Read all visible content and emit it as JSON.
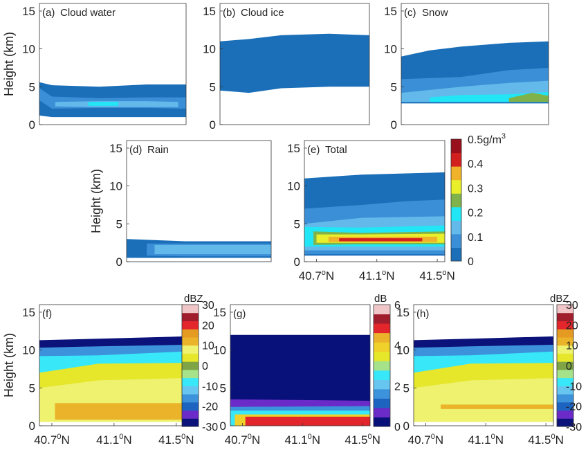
{
  "colors": {
    "water_scale": [
      "#1a6fb8",
      "#3b8fd6",
      "#62b9ea",
      "#21e6f6",
      "#7fb24a",
      "#e9ef2a",
      "#f0b22a",
      "#d2201e",
      "#9a0f1c"
    ],
    "dbz_scale": [
      "#0b137a",
      "#6a2bc8",
      "#1d63c0",
      "#3d92dc",
      "#66c6f0",
      "#38e8f8",
      "#a6e28a",
      "#7ea445",
      "#e6e62a",
      "#eef26e",
      "#eab32a",
      "#e59a21",
      "#e3262b",
      "#a01d2d",
      "#f1c6c8"
    ],
    "db_scale": [
      "#08107a",
      "#6a2bc8",
      "#1d63c0",
      "#3d92dc",
      "#66c6f0",
      "#38e8f8",
      "#a6e28a",
      "#e6e62a",
      "#f0d02a",
      "#eab32a",
      "#e3262b",
      "#a01d2d",
      "#f1c6c8"
    ]
  },
  "chart_data": [
    {
      "type": "heatmap",
      "panel": "a",
      "label": "(a)",
      "title": "Cloud water",
      "ylabel": "Height (km)",
      "ylim": [
        0,
        16
      ],
      "y_ticks": [
        "0",
        "5",
        "10",
        "15"
      ],
      "layers": [
        {
          "name": "0-0.05",
          "band": [
            [
              40.62,
              1.2,
              5.6
            ],
            [
              40.7,
              1.0,
              5.2
            ],
            [
              41.0,
              1.0,
              5.0
            ],
            [
              41.3,
              1.0,
              5.3
            ],
            [
              41.55,
              1.0,
              5.3
            ]
          ]
        },
        {
          "name": "0.05-0.1",
          "band": [
            [
              40.62,
              3.2,
              4.8
            ],
            [
              40.7,
              2.1,
              3.7
            ],
            [
              41.0,
              2.2,
              3.5
            ],
            [
              41.3,
              2.2,
              3.6
            ],
            [
              41.55,
              2.1,
              3.6
            ]
          ]
        },
        {
          "name": "0.15-0.2",
          "band": [
            [
              40.72,
              2.4,
              3.0
            ],
            [
              41.0,
              2.3,
              3.1
            ],
            [
              41.3,
              2.3,
              3.1
            ],
            [
              41.5,
              2.3,
              3.0
            ]
          ]
        },
        {
          "name": "0.25-0.3",
          "band": [
            [
              40.93,
              2.5,
              3.0
            ],
            [
              41.12,
              2.5,
              3.0
            ]
          ]
        }
      ]
    },
    {
      "type": "heatmap",
      "panel": "b",
      "label": "(b)",
      "title": "Cloud ice",
      "ylim": [
        0,
        16
      ],
      "y_ticks": [
        "0",
        "5",
        "10",
        "15"
      ],
      "layers": [
        {
          "name": "0-0.05",
          "band": [
            [
              40.62,
              4.5,
              11.0
            ],
            [
              40.8,
              4.2,
              11.3
            ],
            [
              41.0,
              4.8,
              11.8
            ],
            [
              41.3,
              5.0,
              12.0
            ],
            [
              41.55,
              5.0,
              11.8
            ]
          ]
        }
      ]
    },
    {
      "type": "heatmap",
      "panel": "c",
      "label": "(c)",
      "title": "Snow",
      "ylim": [
        0,
        16
      ],
      "y_ticks": [
        "0",
        "5",
        "10",
        "15"
      ],
      "layers": [
        {
          "name": "0-0.05",
          "band": [
            [
              40.62,
              2.8,
              9.0
            ],
            [
              40.8,
              2.8,
              9.8
            ],
            [
              41.0,
              2.8,
              10.3
            ],
            [
              41.3,
              2.8,
              10.8
            ],
            [
              41.55,
              2.8,
              11.0
            ]
          ]
        },
        {
          "name": "0.05-0.1",
          "band": [
            [
              40.62,
              3.0,
              6.0
            ],
            [
              41.0,
              3.0,
              6.3
            ],
            [
              41.3,
              3.0,
              7.2
            ],
            [
              41.55,
              3.0,
              7.5
            ]
          ]
        },
        {
          "name": "0.1-0.15",
          "band": [
            [
              40.62,
              3.0,
              4.2
            ],
            [
              41.0,
              3.0,
              5.0
            ],
            [
              41.3,
              3.0,
              5.5
            ],
            [
              41.55,
              3.0,
              5.8
            ]
          ]
        },
        {
          "name": "0.15-0.2",
          "band": [
            [
              40.8,
              3.0,
              3.6
            ],
            [
              41.0,
              3.0,
              3.9
            ],
            [
              41.3,
              3.0,
              4.0
            ],
            [
              41.55,
              3.0,
              4.3
            ]
          ]
        },
        {
          "name": "0.2-0.25",
          "band": [
            [
              41.3,
              3.0,
              3.5
            ],
            [
              41.45,
              3.0,
              4.2
            ],
            [
              41.55,
              3.0,
              3.8
            ]
          ]
        }
      ]
    },
    {
      "type": "heatmap",
      "panel": "d",
      "label": "(d)",
      "title": "Rain",
      "ylabel": "Height (km)",
      "ylim": [
        0,
        16
      ],
      "y_ticks": [
        "0",
        "5",
        "10",
        "15"
      ],
      "layers": [
        {
          "name": "0-0.05",
          "band": [
            [
              40.62,
              0.5,
              3.0
            ],
            [
              41.0,
              0.5,
              2.7
            ],
            [
              41.55,
              0.5,
              2.7
            ]
          ]
        },
        {
          "name": "0.05-0.1",
          "band": [
            [
              40.75,
              0.8,
              2.4
            ],
            [
              41.0,
              0.7,
              2.4
            ],
            [
              41.55,
              0.7,
              2.4
            ]
          ]
        },
        {
          "name": "0.1-0.15",
          "band": [
            [
              40.8,
              1.0,
              2.2
            ],
            [
              41.2,
              1.0,
              2.2
            ],
            [
              41.55,
              1.0,
              2.2
            ]
          ]
        }
      ]
    },
    {
      "type": "heatmap",
      "panel": "e",
      "label": "(e)",
      "title": "Total",
      "ylim": [
        0,
        16
      ],
      "y_ticks": [
        "0",
        "5",
        "10",
        "15"
      ],
      "x_ticks": [
        "40.7",
        "41.1",
        "41.5"
      ],
      "x_tick_unit_sup": "o",
      "x_tick_unit": "N",
      "layers": [
        {
          "name": "0-0.05",
          "band": [
            [
              40.62,
              0.8,
              11.0
            ],
            [
              41.0,
              0.8,
              11.5
            ],
            [
              41.55,
              0.8,
              11.8
            ]
          ]
        },
        {
          "name": "0.05-0.1",
          "band": [
            [
              40.62,
              1.0,
              7.0
            ],
            [
              41.0,
              1.0,
              7.5
            ],
            [
              41.3,
              1.0,
              8.0
            ],
            [
              41.55,
              1.0,
              8.2
            ]
          ]
        },
        {
          "name": "0.1-0.15",
          "band": [
            [
              40.62,
              1.5,
              5.0
            ],
            [
              41.0,
              1.5,
              5.8
            ],
            [
              41.55,
              1.5,
              6.0
            ]
          ]
        },
        {
          "name": "0.15-0.2",
          "band": [
            [
              40.62,
              2.0,
              4.6
            ],
            [
              41.0,
              2.0,
              4.5
            ],
            [
              41.55,
              2.0,
              4.8
            ]
          ]
        },
        {
          "name": "0.2-0.25",
          "band": [
            [
              40.68,
              2.2,
              4.0
            ],
            [
              41.0,
              2.3,
              3.8
            ],
            [
              41.55,
              2.3,
              4.0
            ]
          ]
        },
        {
          "name": "0.25-0.3",
          "band": [
            [
              40.7,
              2.5,
              3.6
            ],
            [
              41.0,
              2.5,
              3.6
            ],
            [
              41.55,
              2.5,
              3.7
            ]
          ]
        },
        {
          "name": "0.3-0.35",
          "band": [
            [
              40.78,
              2.6,
              3.3
            ],
            [
              41.0,
              2.6,
              3.3
            ],
            [
              41.5,
              2.6,
              3.3
            ]
          ]
        },
        {
          "name": "0.35-0.4",
          "band": [
            [
              40.85,
              2.7,
              3.1
            ],
            [
              41.4,
              2.7,
              3.1
            ]
          ]
        }
      ],
      "colorbar": {
        "ticks": [
          "0",
          "0.1",
          "0.2",
          "0.3",
          "0.4",
          "0.5"
        ],
        "unit": "g/m",
        "unit_sup": "3"
      }
    },
    {
      "type": "heatmap",
      "panel": "f",
      "label": "(f)",
      "ylabel": "Height (km)",
      "ylim": [
        0,
        16
      ],
      "y_ticks": [
        "0",
        "5",
        "10",
        "15"
      ],
      "x_ticks": [
        "40.7",
        "41.1",
        "41.5"
      ],
      "x_tick_unit_sup": "0",
      "x_tick_unit": "N",
      "layers": [
        {
          "name": "< -20",
          "band": [
            [
              40.62,
              0.5,
              11.3
            ],
            [
              41.0,
              0.5,
              11.5
            ],
            [
              41.55,
              0.5,
              11.8
            ]
          ]
        },
        {
          "name": "-20 to -10",
          "band": [
            [
              40.62,
              0.5,
              10.3
            ],
            [
              41.0,
              0.5,
              10.5
            ],
            [
              41.55,
              0.5,
              10.7
            ]
          ]
        },
        {
          "name": "-10 to 0",
          "band": [
            [
              40.62,
              0.5,
              9.2
            ],
            [
              41.0,
              0.5,
              9.3
            ],
            [
              41.55,
              0.5,
              9.8
            ]
          ]
        },
        {
          "name": "0 to 10",
          "band": [
            [
              40.62,
              0.5,
              7.0
            ],
            [
              41.0,
              0.5,
              8.2
            ],
            [
              41.55,
              0.5,
              8.3
            ]
          ]
        },
        {
          "name": "10 to 20",
          "band": [
            [
              40.62,
              0.5,
              5.0
            ],
            [
              41.0,
              0.5,
              6.0
            ],
            [
              41.55,
              0.5,
              6.3
            ]
          ]
        },
        {
          "name": "20 to 30",
          "band": [
            [
              40.72,
              0.8,
              3.0
            ],
            [
              41.0,
              0.8,
              3.0
            ],
            [
              41.55,
              0.8,
              3.0
            ]
          ]
        }
      ],
      "colorbar": {
        "title": "dBZ",
        "ticks": [
          "-30",
          "-20",
          "-10",
          "0",
          "10",
          "20",
          "30"
        ]
      }
    },
    {
      "type": "heatmap",
      "panel": "g",
      "label": "(g)",
      "ylim": [
        0,
        16
      ],
      "y_ticks": [
        "0",
        "5",
        "10",
        "15"
      ],
      "x_ticks": [
        "40.7",
        "41.1",
        "41.5"
      ],
      "x_tick_unit_sup": "0",
      "x_tick_unit": "N",
      "layers": [
        {
          "name": "0-0.5",
          "band": [
            [
              40.62,
              0.0,
              12.0
            ],
            [
              41.55,
              0.0,
              12.0
            ]
          ]
        },
        {
          "name": "1-2",
          "band": [
            [
              40.62,
              0.0,
              3.5
            ],
            [
              41.55,
              0.0,
              3.3
            ]
          ]
        },
        {
          "name": "2-3",
          "band": [
            [
              40.62,
              0.0,
              2.5
            ],
            [
              41.55,
              0.0,
              2.6
            ]
          ]
        },
        {
          "name": "3-4",
          "band": [
            [
              40.62,
              0.0,
              2.0
            ],
            [
              41.55,
              0.0,
              2.0
            ]
          ]
        },
        {
          "name": "4-5",
          "band": [
            [
              40.65,
              0.0,
              1.5
            ],
            [
              41.55,
              0.0,
              1.5
            ]
          ]
        },
        {
          "name": "5-6",
          "band": [
            [
              40.72,
              0.0,
              1.2
            ],
            [
              41.55,
              0.0,
              1.2
            ]
          ]
        }
      ],
      "colorbar": {
        "title": "dB",
        "ticks": [
          "0",
          "2",
          "4",
          "6"
        ]
      }
    },
    {
      "type": "heatmap",
      "panel": "h",
      "label": "(h)",
      "ylim": [
        0,
        16
      ],
      "y_ticks": [
        "0",
        "5",
        "10",
        "15"
      ],
      "x_ticks": [
        "40.7",
        "41.1",
        "41.5"
      ],
      "x_tick_unit_sup": "0",
      "x_tick_unit": "N",
      "layers": [
        {
          "name": "< -20",
          "band": [
            [
              40.62,
              0.5,
              11.3
            ],
            [
              41.0,
              0.5,
              11.5
            ],
            [
              41.55,
              0.5,
              11.8
            ]
          ]
        },
        {
          "name": "-20 to -10",
          "band": [
            [
              40.62,
              0.5,
              10.3
            ],
            [
              41.0,
              0.5,
              10.5
            ],
            [
              41.55,
              0.5,
              10.7
            ]
          ]
        },
        {
          "name": "-10 to 0",
          "band": [
            [
              40.62,
              0.5,
              9.2
            ],
            [
              41.0,
              0.5,
              9.3
            ],
            [
              41.55,
              0.5,
              9.8
            ]
          ]
        },
        {
          "name": "0 to 10",
          "band": [
            [
              40.62,
              0.5,
              7.0
            ],
            [
              41.0,
              0.5,
              8.2
            ],
            [
              41.55,
              0.5,
              8.3
            ]
          ]
        },
        {
          "name": "10 to 20",
          "band": [
            [
              40.62,
              0.5,
              5.0
            ],
            [
              41.0,
              0.5,
              6.0
            ],
            [
              41.55,
              0.5,
              6.3
            ]
          ]
        },
        {
          "name": "20 to 30",
          "band": [
            [
              40.8,
              2.2,
              2.8
            ],
            [
              41.55,
              2.2,
              2.8
            ]
          ]
        }
      ],
      "colorbar": {
        "title": "dBZ",
        "ticks": [
          "-30",
          "-20",
          "-10",
          "0",
          "10",
          "20",
          "30"
        ]
      }
    }
  ]
}
